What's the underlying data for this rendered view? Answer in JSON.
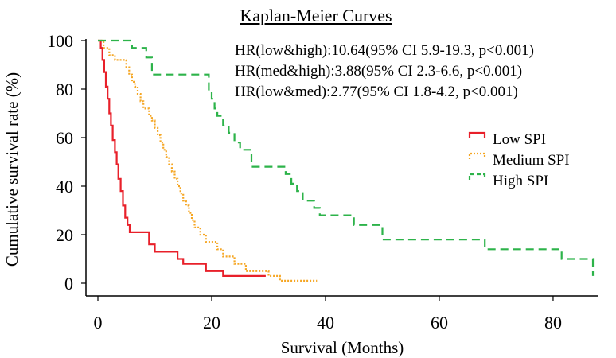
{
  "chart_data": {
    "type": "line",
    "title": "Kaplan-Meier Curves",
    "xlabel": "Survival (Months)",
    "ylabel": "Cumulative survival rate (%)",
    "xlim": [
      0,
      87
    ],
    "ylim": [
      0,
      100
    ],
    "x_ticks": [
      "0",
      "20",
      "40",
      "60",
      "80"
    ],
    "y_ticks": [
      "0",
      "20",
      "40",
      "60",
      "80",
      "100"
    ],
    "grid": false,
    "legend_position": "right",
    "annotations": [
      "HR(low&high):10.64(95% CI 5.9-19.3, p<0.001)",
      "HR(med&high):3.88(95% CI 2.3-6.6, p<0.001)",
      "HR(low&med):2.77(95% CI 1.8-4.2, p<0.001)"
    ],
    "series": [
      {
        "name": "Low SPI",
        "color": "#e8202a",
        "style": "solid",
        "x": [
          0,
          0.5,
          0.8,
          1.1,
          1.4,
          1.7,
          2.0,
          2.3,
          2.6,
          3.0,
          3.3,
          3.6,
          4.0,
          4.4,
          4.8,
          5.2,
          5.6,
          6.0,
          9.0,
          10.0,
          14.0,
          15.0,
          19.0,
          22.0,
          29.5
        ],
        "y": [
          100,
          97,
          92,
          87,
          81,
          76,
          70,
          65,
          59,
          54,
          49,
          43,
          38,
          32,
          27,
          24,
          21,
          21,
          16,
          13,
          10,
          8,
          5,
          3,
          3
        ]
      },
      {
        "name": "Medium SPI",
        "color": "#f5a623",
        "style": "dotted",
        "x": [
          0,
          1.0,
          2.0,
          3.0,
          4.0,
          5.0,
          5.5,
          6.0,
          6.5,
          7.0,
          7.5,
          8.0,
          9.0,
          9.5,
          10.0,
          10.5,
          11.0,
          11.5,
          12.0,
          12.5,
          13.0,
          13.5,
          14.0,
          14.5,
          15.0,
          15.5,
          16.0,
          16.5,
          17.0,
          18.0,
          19.0,
          21.0,
          22.0,
          24.0,
          26.0,
          30.0,
          32.0,
          38.5
        ],
        "y": [
          100,
          97,
          94,
          92,
          92,
          89,
          86,
          83,
          81,
          78,
          75,
          72,
          69,
          67,
          64,
          61,
          58,
          55,
          52,
          49,
          46,
          43,
          40,
          37,
          34,
          32,
          29,
          26,
          23,
          20,
          17,
          14,
          11,
          8,
          5,
          3,
          1,
          1
        ]
      },
      {
        "name": "High SPI",
        "color": "#2db34a",
        "style": "dashed",
        "x": [
          0,
          6.0,
          8.5,
          9.5,
          19.0,
          19.5,
          20.0,
          20.5,
          21.0,
          22.0,
          23.0,
          24.0,
          25.0,
          27.0,
          33.0,
          34.0,
          35.0,
          36.0,
          38.0,
          39.0,
          45.0,
          50.0,
          68.0,
          81.5,
          87.0
        ],
        "y": [
          100,
          97,
          93,
          86,
          86,
          79,
          76,
          72,
          69,
          65,
          62,
          58,
          55,
          48,
          45,
          41,
          38,
          34,
          31,
          28,
          24,
          18,
          14,
          10,
          3
        ]
      }
    ]
  }
}
